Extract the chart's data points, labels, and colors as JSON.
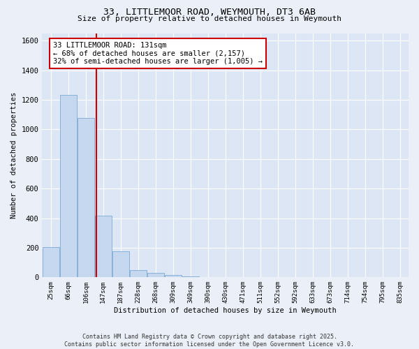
{
  "title1": "33, LITTLEMOOR ROAD, WEYMOUTH, DT3 6AB",
  "title2": "Size of property relative to detached houses in Weymouth",
  "xlabel": "Distribution of detached houses by size in Weymouth",
  "ylabel": "Number of detached properties",
  "categories": [
    "25sqm",
    "66sqm",
    "106sqm",
    "147sqm",
    "187sqm",
    "228sqm",
    "268sqm",
    "309sqm",
    "349sqm",
    "390sqm",
    "430sqm",
    "471sqm",
    "511sqm",
    "552sqm",
    "592sqm",
    "633sqm",
    "673sqm",
    "714sqm",
    "754sqm",
    "795sqm",
    "835sqm"
  ],
  "bar_heights": [
    203,
    1232,
    1078,
    415,
    175,
    50,
    30,
    15,
    5,
    2,
    1,
    0,
    0,
    0,
    0,
    0,
    0,
    0,
    0,
    0,
    0
  ],
  "bar_color": "#c5d8f0",
  "bar_edge_color": "#7aaad4",
  "ylim": [
    0,
    1650
  ],
  "yticks": [
    0,
    200,
    400,
    600,
    800,
    1000,
    1200,
    1400,
    1600
  ],
  "annotation_text": "33 LITTLEMOOR ROAD: 131sqm\n← 68% of detached houses are smaller (2,157)\n32% of semi-detached houses are larger (1,005) →",
  "annotation_box_color": "#ffffff",
  "annotation_box_edge": "#cc0000",
  "red_line_color": "#cc0000",
  "footnote": "Contains HM Land Registry data © Crown copyright and database right 2025.\nContains public sector information licensed under the Open Government Licence v3.0.",
  "bg_color": "#eaeff8",
  "plot_bg_color": "#dde6f4"
}
